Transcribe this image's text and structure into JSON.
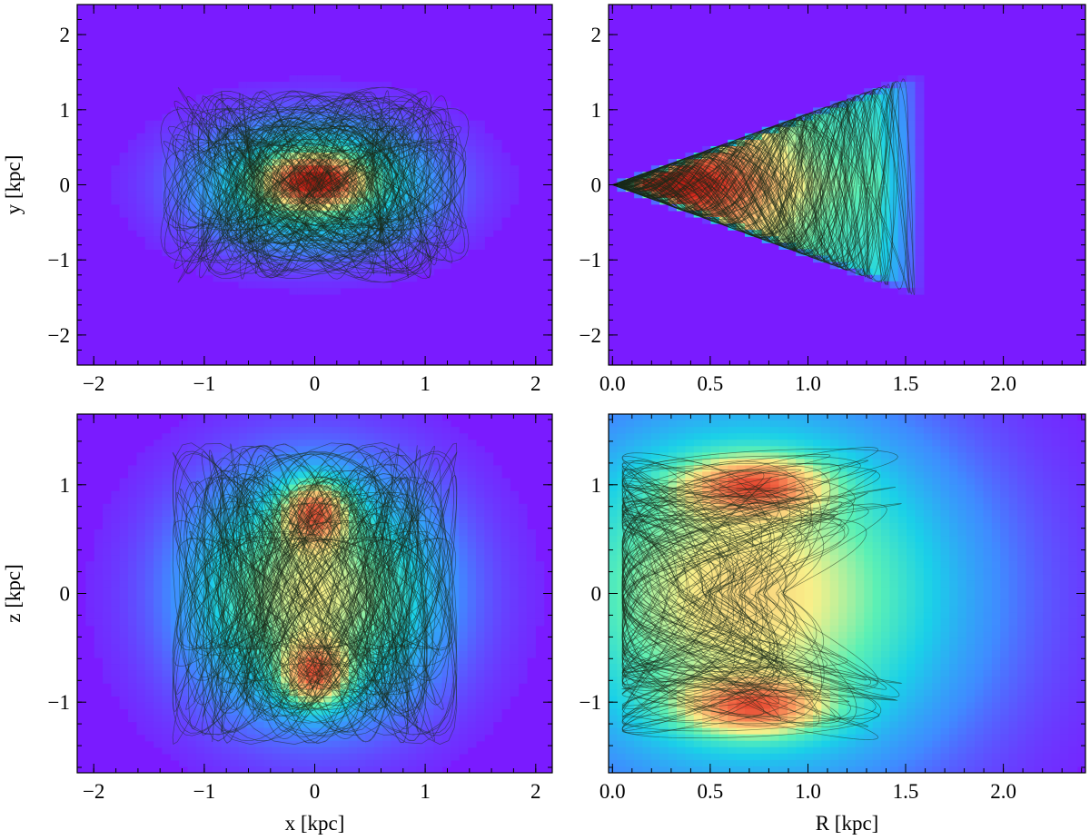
{
  "colormap": {
    "name": "rainbow",
    "background": "#7a1bff",
    "stops": [
      "#7a1bff",
      "#3f8cff",
      "#1ad0e8",
      "#5cf0b4",
      "#f8f08a",
      "#fdb26e",
      "#f36a46",
      "#d72a1e",
      "#b51b12"
    ]
  },
  "orbit_color": "#1a2a1a",
  "chart_data": [
    {
      "type": "heatmap",
      "panel": "top-left",
      "projection": "x-y",
      "xlabel": "",
      "ylabel": "y [kpc]",
      "xlim": [
        -2.15,
        2.15
      ],
      "ylim": [
        -2.4,
        2.4
      ],
      "xticks": [
        -2,
        -1,
        0,
        1,
        2
      ],
      "xtick_labels": [
        "−2",
        "−1",
        "0",
        "1",
        "2"
      ],
      "yticks": [
        -2,
        -1,
        0,
        1,
        2
      ],
      "ytick_labels": [
        "−2",
        "−1",
        "0",
        "1",
        "2"
      ],
      "density_blobs": [
        {
          "cx": 0.0,
          "cy": 0.0,
          "sx": 1.0,
          "sy": 0.78,
          "peak": 0.42
        },
        {
          "cx": 0.0,
          "cy": 0.05,
          "sx": 0.38,
          "sy": 0.3,
          "peak": 0.62
        }
      ],
      "orbit_envelope": {
        "shape": "ellipse",
        "cx": 0.0,
        "cy": 0.0,
        "rx": 1.4,
        "ry": 1.3
      }
    },
    {
      "type": "heatmap",
      "panel": "top-right",
      "projection": "R-y",
      "xlabel": "",
      "ylabel": "",
      "xlim": [
        -0.02,
        2.42
      ],
      "ylim": [
        -2.4,
        2.4
      ],
      "xticks": [
        0.0,
        0.5,
        1.0,
        1.5,
        2.0
      ],
      "xtick_labels": [
        "0.0",
        "0.5",
        "1.0",
        "1.5",
        "2.0"
      ],
      "yticks": [
        -2,
        -1,
        0,
        1,
        2
      ],
      "ytick_labels": [
        "−2",
        "−1",
        "0",
        "1",
        "2"
      ],
      "density_wedge": {
        "apex": [
          0.0,
          0.0
        ],
        "slope": 0.95,
        "rmax": 1.6,
        "peak_r": 0.3
      },
      "orbit_envelope": {
        "shape": "wedge",
        "rmax": 1.55,
        "slope": 0.95
      }
    },
    {
      "type": "heatmap",
      "panel": "bottom-left",
      "projection": "x-z",
      "xlabel": "x [kpc]",
      "ylabel": "z [kpc]",
      "xlim": [
        -2.15,
        2.15
      ],
      "ylim": [
        -1.65,
        1.65
      ],
      "xticks": [
        -2,
        -1,
        0,
        1,
        2
      ],
      "xtick_labels": [
        "−2",
        "−1",
        "0",
        "1",
        "2"
      ],
      "yticks": [
        -1,
        0,
        1
      ],
      "ytick_labels": [
        "−1",
        "0",
        "1"
      ],
      "density_blobs": [
        {
          "cx": 0.0,
          "cy": 0.0,
          "sx": 1.1,
          "sy": 1.05,
          "peak": 0.5
        },
        {
          "cx": 0.0,
          "cy": 0.75,
          "sx": 0.28,
          "sy": 0.28,
          "peak": 0.5
        },
        {
          "cx": 0.0,
          "cy": -0.75,
          "sx": 0.28,
          "sy": 0.28,
          "peak": 0.5
        }
      ],
      "orbit_envelope": {
        "shape": "ellipse",
        "cx": 0.0,
        "cy": 0.0,
        "rx": 1.3,
        "ry": 1.4
      }
    },
    {
      "type": "heatmap",
      "panel": "bottom-right",
      "projection": "R-z",
      "xlabel": "R [kpc]",
      "ylabel": "",
      "xlim": [
        -0.02,
        2.42
      ],
      "ylim": [
        -1.65,
        1.65
      ],
      "xticks": [
        0.0,
        0.5,
        1.0,
        1.5,
        2.0
      ],
      "xtick_labels": [
        "0.0",
        "0.5",
        "1.0",
        "1.5",
        "2.0"
      ],
      "yticks": [
        -1,
        0,
        1
      ],
      "ytick_labels": [
        "−1",
        "0",
        "1"
      ],
      "density_blobs": [
        {
          "cx": 0.7,
          "cy": 0.0,
          "sx": 1.05,
          "sy": 1.6,
          "peak": 0.55
        },
        {
          "cx": 0.72,
          "cy": 1.0,
          "sx": 0.35,
          "sy": 0.25,
          "peak": 0.45
        },
        {
          "cx": 0.72,
          "cy": -1.05,
          "sx": 0.35,
          "sy": 0.25,
          "peak": 0.45
        }
      ],
      "orbit_envelope": {
        "shape": "kidney",
        "rmax": 1.5,
        "zmax": 1.35
      }
    }
  ]
}
